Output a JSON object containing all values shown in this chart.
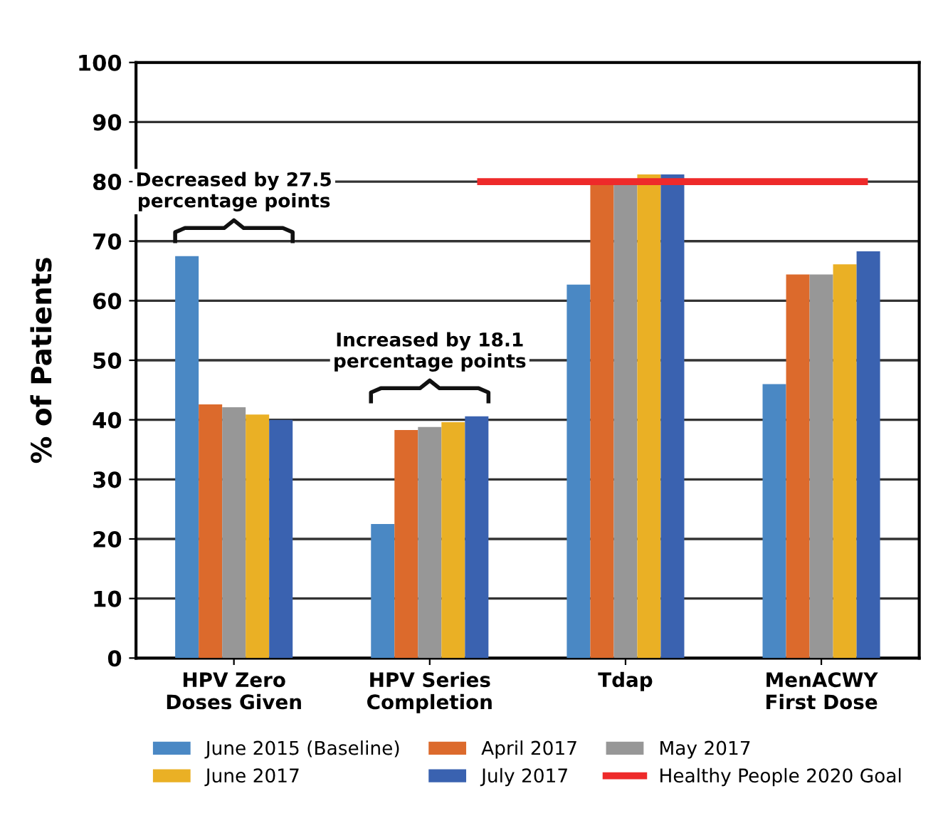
{
  "chart_data": {
    "type": "bar",
    "ylabel": "% of Patients",
    "categories": [
      "HPV Zero\nDoses Given",
      "HPV Series\nCompletion",
      "Tdap",
      "MenACWY\nFirst Dose"
    ],
    "series": [
      {
        "name": "June 2015 (Baseline)",
        "color": "#4a88c4",
        "values": [
          67.5,
          22.5,
          62.7,
          46.0
        ]
      },
      {
        "name": "April 2017",
        "color": "#dc6a2c",
        "values": [
          42.6,
          38.3,
          79.4,
          64.4
        ]
      },
      {
        "name": "May 2017",
        "color": "#979797",
        "values": [
          42.1,
          38.8,
          80.0,
          64.4
        ]
      },
      {
        "name": "June 2017",
        "color": "#eab025",
        "values": [
          40.9,
          39.6,
          81.2,
          66.1
        ]
      },
      {
        "name": "July 2017",
        "color": "#3a62b0",
        "values": [
          40.0,
          40.6,
          81.2,
          68.3
        ]
      }
    ],
    "ref_lines": [
      {
        "axis": "y",
        "value": 80,
        "label": "Healthy People 2020 Goal",
        "color": "#ee2a2a"
      }
    ],
    "annotations": [
      "Decreased by 27.5\npercentage points",
      "Increased by 18.1\npercentage points"
    ],
    "ylim": [
      0,
      100
    ],
    "yticks": [
      0,
      10,
      20,
      30,
      40,
      50,
      60,
      70,
      80,
      90,
      100
    ],
    "grid": "y",
    "legend": "bottom"
  }
}
